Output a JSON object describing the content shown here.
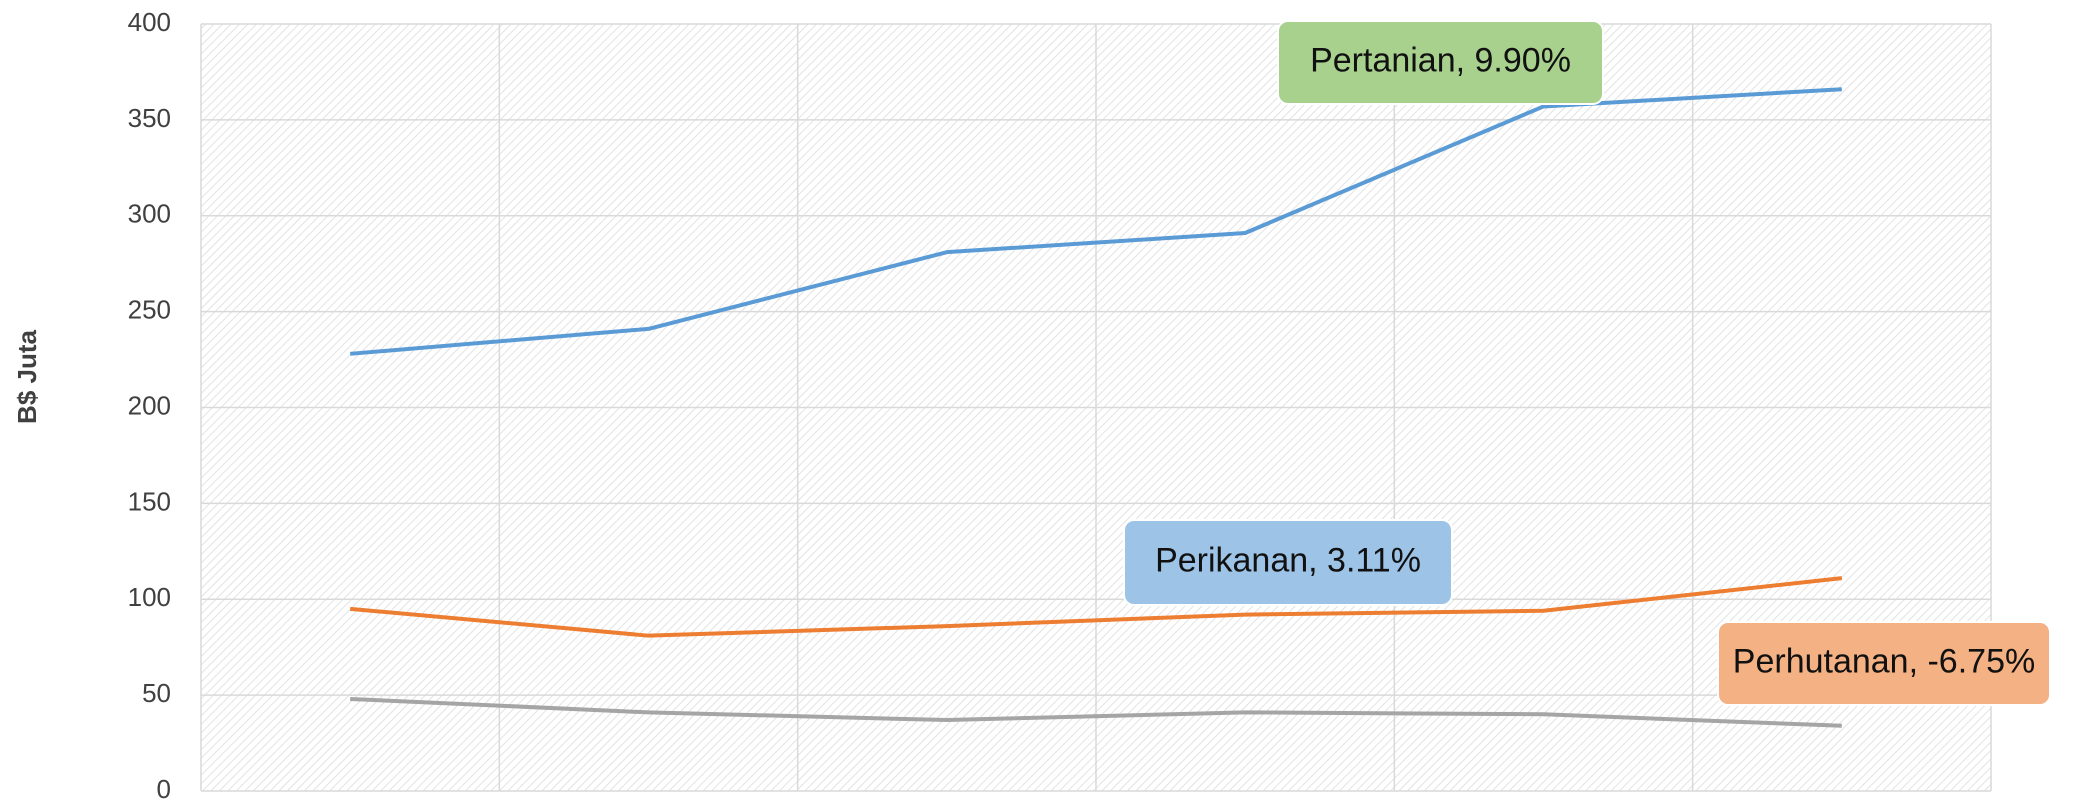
{
  "chart_data": {
    "type": "line",
    "y_label": "B$ Juta",
    "categories": [
      null,
      null,
      null,
      null,
      null,
      null
    ],
    "series": [
      {
        "color": "#5b9bd5",
        "values": [
          228,
          241,
          281,
          291,
          357,
          366
        ]
      },
      {
        "color": "#ed7d31",
        "values": [
          95,
          81,
          86,
          92,
          94,
          111
        ]
      },
      {
        "color": "#a5a5a5",
        "values": [
          48,
          41,
          37,
          41,
          40,
          34
        ]
      }
    ],
    "annotations": [
      {
        "text": "Pertanian, 9.90%",
        "color": "#a9d18e"
      },
      {
        "text": "Perikanan, 3.11%",
        "color": "#9dc3e6"
      },
      {
        "text": "Perhutanan, -6.75%",
        "color": "#f4b183"
      }
    ],
    "ylim": [
      0,
      400
    ],
    "yticks": [
      0,
      50,
      100,
      150,
      200,
      250,
      300,
      350,
      400
    ],
    "grid": true
  }
}
